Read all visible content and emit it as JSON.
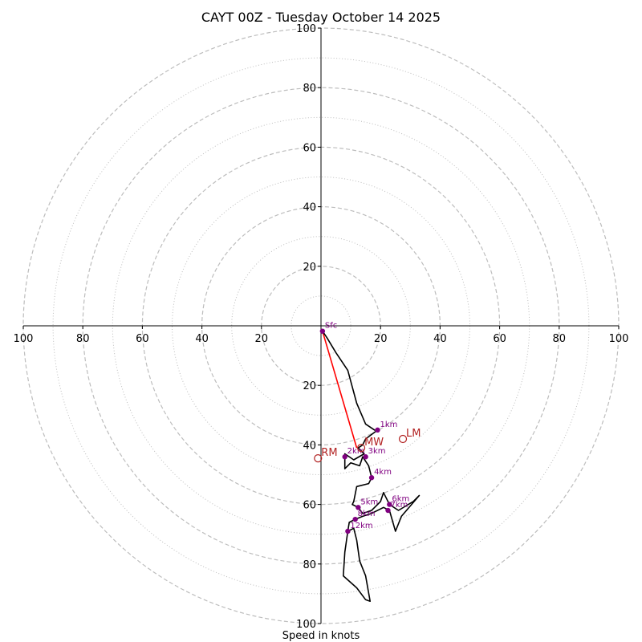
{
  "chart_data": {
    "type": "hodograph",
    "title": "CAYT 00Z - Tuesday October 14 2025",
    "xlabel": "Speed in knots",
    "range": [
      -100,
      100
    ],
    "rings_major": [
      20,
      40,
      60,
      80,
      100
    ],
    "rings_minor": [
      10,
      30,
      50,
      70,
      90
    ],
    "x_ticks": [
      "100",
      "80",
      "60",
      "40",
      "20",
      "0",
      "20",
      "40",
      "60",
      "80",
      "100"
    ],
    "y_ticks_top": [
      "20",
      "40",
      "60",
      "80",
      "100"
    ],
    "y_ticks_bottom": [
      "20",
      "40",
      "60",
      "80",
      "100"
    ],
    "colors": {
      "ring": "#bdbdbd",
      "axis": "#000000",
      "trace": "#000000",
      "height_marker": "#800080",
      "motion": "#b22222",
      "shear_vector": "#ff0000"
    },
    "trace": [
      [
        0.5,
        -1.8
      ],
      [
        2,
        -4
      ],
      [
        5,
        -9
      ],
      [
        9,
        -15
      ],
      [
        12,
        -26
      ],
      [
        15,
        -33
      ],
      [
        18,
        -35
      ],
      [
        19,
        -35
      ],
      [
        15,
        -38
      ],
      [
        14,
        -40
      ],
      [
        12.5,
        -41
      ],
      [
        14.5,
        -43
      ],
      [
        11,
        -45
      ],
      [
        8,
        -43
      ],
      [
        8,
        -48
      ],
      [
        10,
        -46
      ],
      [
        13,
        -47
      ],
      [
        14,
        -44
      ],
      [
        16,
        -47
      ],
      [
        17,
        -51
      ],
      [
        16,
        -53
      ],
      [
        12,
        -54
      ],
      [
        11,
        -59
      ],
      [
        10.5,
        -60
      ],
      [
        12.5,
        -61
      ],
      [
        14,
        -63
      ],
      [
        17,
        -62
      ],
      [
        20,
        -59
      ],
      [
        21,
        -56
      ],
      [
        22,
        -58
      ],
      [
        23,
        -60
      ],
      [
        26,
        -62
      ],
      [
        31,
        -59
      ],
      [
        33,
        -57
      ],
      [
        27,
        -64
      ],
      [
        25,
        -69
      ],
      [
        23,
        -62
      ],
      [
        21,
        -61
      ],
      [
        17,
        -63
      ],
      [
        14,
        -64
      ],
      [
        11.5,
        -65
      ],
      [
        9.5,
        -66
      ],
      [
        9,
        -69
      ],
      [
        8,
        -76
      ],
      [
        7.5,
        -84
      ],
      [
        12,
        -88
      ],
      [
        15,
        -92
      ],
      [
        16.5,
        -92.5
      ],
      [
        15,
        -84
      ],
      [
        13,
        -79
      ],
      [
        12,
        -72
      ],
      [
        11,
        -68
      ],
      [
        9,
        -69
      ]
    ],
    "height_markers": [
      {
        "label": "Sfc",
        "u": 0.5,
        "v": -1.8
      },
      {
        "label": "1km",
        "u": 19,
        "v": -35
      },
      {
        "label": "2km",
        "u": 8,
        "v": -44
      },
      {
        "label": "3km",
        "u": 15,
        "v": -44
      },
      {
        "label": "4km",
        "u": 17,
        "v": -51
      },
      {
        "label": "5km",
        "u": 12.5,
        "v": -61
      },
      {
        "label": "6km",
        "u": 23,
        "v": -60
      },
      {
        "label": "7km",
        "u": 22.5,
        "v": -62
      },
      {
        "label": "8km",
        "u": 11.5,
        "v": -65
      },
      {
        "label": "12km",
        "u": 9,
        "v": -69
      }
    ],
    "storm_motions": [
      {
        "label": "LM",
        "u": 27.5,
        "v": -38
      },
      {
        "label": "MW",
        "u": 13.5,
        "v": -41
      },
      {
        "label": "RM",
        "u": -1,
        "v": -44.5
      }
    ],
    "shear_vector": {
      "from": [
        0.5,
        -1.8
      ],
      "to": [
        12,
        -41
      ]
    }
  }
}
